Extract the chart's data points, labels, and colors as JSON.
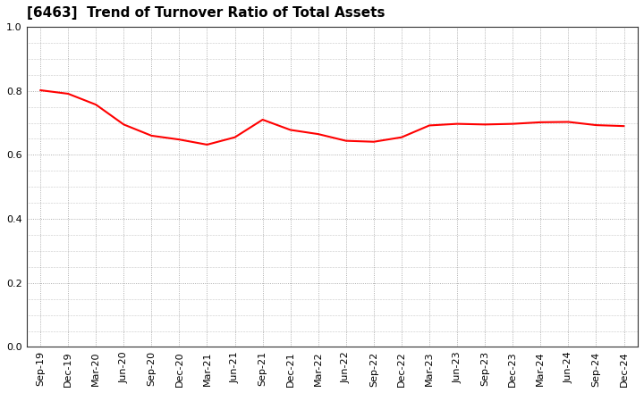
{
  "title": "[6463]  Trend of Turnover Ratio of Total Assets",
  "x_labels": [
    "Sep-19",
    "Dec-19",
    "Mar-20",
    "Jun-20",
    "Sep-20",
    "Dec-20",
    "Mar-21",
    "Jun-21",
    "Sep-21",
    "Dec-21",
    "Mar-22",
    "Jun-22",
    "Sep-22",
    "Dec-22",
    "Mar-23",
    "Jun-23",
    "Sep-23",
    "Dec-23",
    "Mar-24",
    "Jun-24",
    "Sep-24",
    "Dec-24"
  ],
  "values": [
    0.802,
    0.791,
    0.757,
    0.695,
    0.66,
    0.648,
    0.632,
    0.655,
    0.71,
    0.678,
    0.665,
    0.644,
    0.641,
    0.655,
    0.692,
    0.697,
    0.695,
    0.697,
    0.702,
    0.703,
    0.693,
    0.69
  ],
  "line_color": "#FF0000",
  "line_width": 1.5,
  "ylim": [
    0.0,
    1.0
  ],
  "yticks": [
    0.0,
    0.2,
    0.4,
    0.6,
    0.8,
    1.0
  ],
  "grid_color": "#999999",
  "background_color": "#ffffff",
  "title_fontsize": 11,
  "tick_fontsize": 8,
  "fig_width": 7.2,
  "fig_height": 4.4,
  "fig_dpi": 100
}
